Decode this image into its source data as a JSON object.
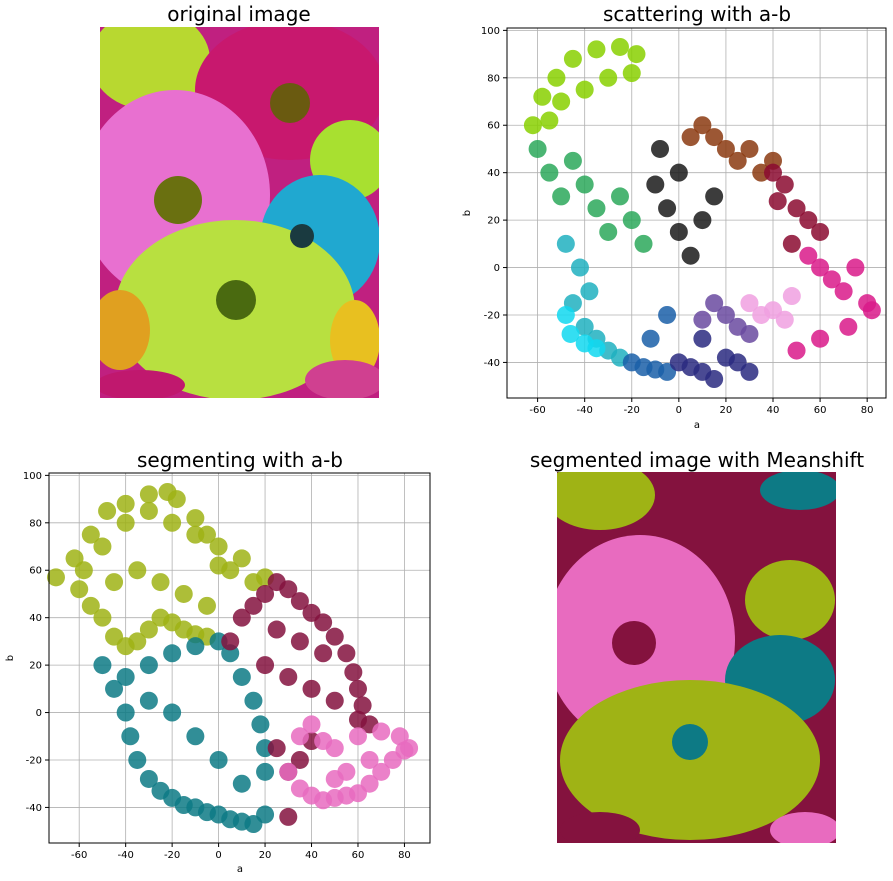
{
  "panels": {
    "original": {
      "title": "original image"
    },
    "segmented": {
      "title": "segmented image with Meanshift"
    }
  },
  "chart_data": [
    {
      "type": "scatter",
      "title": "scattering with a-b",
      "xlabel": "a",
      "ylabel": "b",
      "xlim": [
        -73,
        88
      ],
      "ylim": [
        -55,
        101
      ],
      "xticks": [
        -60,
        -40,
        -20,
        0,
        20,
        40,
        60,
        80
      ],
      "yticks": [
        -40,
        -20,
        0,
        20,
        40,
        60,
        80,
        100
      ],
      "grid": true,
      "series": [
        {
          "color": "#88d000",
          "points": [
            [
              -58,
              72
            ],
            [
              -52,
              80
            ],
            [
              -45,
              88
            ],
            [
              -35,
              92
            ],
            [
              -25,
              93
            ],
            [
              -18,
              90
            ],
            [
              -50,
              70
            ],
            [
              -40,
              75
            ],
            [
              -30,
              80
            ],
            [
              -20,
              82
            ],
            [
              -62,
              60
            ],
            [
              -55,
              62
            ]
          ]
        },
        {
          "color": "#2ca85a",
          "points": [
            [
              -60,
              50
            ],
            [
              -55,
              40
            ],
            [
              -50,
              30
            ],
            [
              -45,
              45
            ],
            [
              -40,
              35
            ],
            [
              -35,
              25
            ],
            [
              -30,
              15
            ],
            [
              -25,
              30
            ],
            [
              -20,
              20
            ],
            [
              -15,
              10
            ]
          ]
        },
        {
          "color": "#1a1a1a",
          "points": [
            [
              -10,
              35
            ],
            [
              -5,
              25
            ],
            [
              0,
              15
            ],
            [
              5,
              5
            ],
            [
              10,
              20
            ],
            [
              15,
              30
            ],
            [
              -8,
              50
            ],
            [
              0,
              40
            ]
          ]
        },
        {
          "color": "#8b3a10",
          "points": [
            [
              5,
              55
            ],
            [
              10,
              60
            ],
            [
              15,
              55
            ],
            [
              20,
              50
            ],
            [
              25,
              45
            ],
            [
              30,
              50
            ],
            [
              35,
              40
            ],
            [
              40,
              45
            ]
          ]
        },
        {
          "color": "#8b0a30",
          "points": [
            [
              40,
              40
            ],
            [
              45,
              35
            ],
            [
              50,
              25
            ],
            [
              55,
              20
            ],
            [
              48,
              10
            ],
            [
              60,
              15
            ],
            [
              42,
              28
            ]
          ]
        },
        {
          "color": "#d91a8a",
          "points": [
            [
              55,
              5
            ],
            [
              60,
              0
            ],
            [
              65,
              -5
            ],
            [
              70,
              -10
            ],
            [
              75,
              0
            ],
            [
              80,
              -15
            ],
            [
              82,
              -18
            ],
            [
              72,
              -25
            ],
            [
              60,
              -30
            ],
            [
              50,
              -35
            ]
          ]
        },
        {
          "color": "#f0a0e0",
          "points": [
            [
              30,
              -15
            ],
            [
              35,
              -20
            ],
            [
              40,
              -18
            ],
            [
              45,
              -22
            ],
            [
              48,
              -12
            ]
          ]
        },
        {
          "color": "#20b0c0",
          "points": [
            [
              -45,
              -15
            ],
            [
              -40,
              -25
            ],
            [
              -35,
              -30
            ],
            [
              -30,
              -35
            ],
            [
              -25,
              -38
            ],
            [
              -38,
              -10
            ],
            [
              -42,
              0
            ],
            [
              -48,
              10
            ]
          ]
        },
        {
          "color": "#10d8f0",
          "points": [
            [
              -48,
              -20
            ],
            [
              -46,
              -28
            ],
            [
              -40,
              -32
            ],
            [
              -35,
              -34
            ]
          ]
        },
        {
          "color": "#1a5fa8",
          "points": [
            [
              -20,
              -40
            ],
            [
              -15,
              -42
            ],
            [
              -10,
              -43
            ],
            [
              -5,
              -44
            ],
            [
              -12,
              -30
            ],
            [
              -5,
              -20
            ]
          ]
        },
        {
          "color": "#2a2a80",
          "points": [
            [
              0,
              -40
            ],
            [
              5,
              -42
            ],
            [
              10,
              -44
            ],
            [
              15,
              -47
            ],
            [
              20,
              -38
            ],
            [
              25,
              -40
            ],
            [
              30,
              -44
            ],
            [
              10,
              -30
            ]
          ]
        },
        {
          "color": "#6a4aa0",
          "points": [
            [
              20,
              -20
            ],
            [
              25,
              -25
            ],
            [
              30,
              -28
            ],
            [
              15,
              -15
            ],
            [
              10,
              -22
            ]
          ]
        }
      ]
    },
    {
      "type": "scatter",
      "title": "segmenting with a-b",
      "xlabel": "a",
      "ylabel": "b",
      "xlim": [
        -73,
        91
      ],
      "ylim": [
        -55,
        101
      ],
      "xticks": [
        -60,
        -40,
        -20,
        0,
        20,
        40,
        60,
        80
      ],
      "yticks": [
        -40,
        -20,
        0,
        20,
        40,
        60,
        80,
        100
      ],
      "grid": true,
      "series": [
        {
          "color": "#9fb315",
          "points": [
            [
              -62,
              65
            ],
            [
              -55,
              75
            ],
            [
              -48,
              85
            ],
            [
              -40,
              88
            ],
            [
              -30,
              92
            ],
            [
              -22,
              93
            ],
            [
              -18,
              90
            ],
            [
              -10,
              82
            ],
            [
              -5,
              75
            ],
            [
              0,
              70
            ],
            [
              10,
              65
            ],
            [
              20,
              57
            ],
            [
              -60,
              52
            ],
            [
              -55,
              45
            ],
            [
              -50,
              40
            ],
            [
              -45,
              32
            ],
            [
              -40,
              28
            ],
            [
              -35,
              30
            ],
            [
              -30,
              35
            ],
            [
              -25,
              40
            ],
            [
              -20,
              38
            ],
            [
              -15,
              35
            ],
            [
              -10,
              33
            ],
            [
              -5,
              32
            ],
            [
              5,
              60
            ],
            [
              15,
              55
            ],
            [
              -50,
              70
            ],
            [
              -40,
              80
            ],
            [
              -30,
              85
            ],
            [
              -20,
              80
            ],
            [
              -10,
              75
            ],
            [
              0,
              62
            ],
            [
              -35,
              60
            ],
            [
              -25,
              55
            ],
            [
              -15,
              50
            ],
            [
              -5,
              45
            ],
            [
              -58,
              60
            ],
            [
              -45,
              55
            ],
            [
              -70,
              57
            ]
          ]
        },
        {
          "color": "#0d7a85",
          "points": [
            [
              -50,
              20
            ],
            [
              -45,
              10
            ],
            [
              -40,
              0
            ],
            [
              -38,
              -10
            ],
            [
              -35,
              -20
            ],
            [
              -30,
              -28
            ],
            [
              -25,
              -33
            ],
            [
              -20,
              -36
            ],
            [
              -15,
              -39
            ],
            [
              -10,
              -40
            ],
            [
              -5,
              -42
            ],
            [
              0,
              -43
            ],
            [
              5,
              -45
            ],
            [
              10,
              -46
            ],
            [
              15,
              -47
            ],
            [
              20,
              -43
            ],
            [
              -30,
              20
            ],
            [
              -20,
              25
            ],
            [
              -10,
              28
            ],
            [
              0,
              30
            ],
            [
              5,
              25
            ],
            [
              10,
              15
            ],
            [
              15,
              5
            ],
            [
              18,
              -5
            ],
            [
              20,
              -15
            ],
            [
              20,
              -25
            ],
            [
              10,
              -30
            ],
            [
              0,
              -20
            ],
            [
              -10,
              -10
            ],
            [
              -20,
              0
            ],
            [
              -30,
              5
            ],
            [
              -40,
              15
            ]
          ]
        },
        {
          "color": "#84123e",
          "points": [
            [
              5,
              30
            ],
            [
              10,
              40
            ],
            [
              15,
              45
            ],
            [
              20,
              50
            ],
            [
              25,
              55
            ],
            [
              30,
              52
            ],
            [
              35,
              47
            ],
            [
              40,
              42
            ],
            [
              45,
              38
            ],
            [
              50,
              32
            ],
            [
              55,
              25
            ],
            [
              58,
              17
            ],
            [
              60,
              10
            ],
            [
              62,
              3
            ],
            [
              65,
              -5
            ],
            [
              25,
              -15
            ],
            [
              30,
              -25
            ],
            [
              35,
              -20
            ],
            [
              40,
              -12
            ],
            [
              20,
              20
            ],
            [
              30,
              15
            ],
            [
              40,
              10
            ],
            [
              50,
              5
            ],
            [
              25,
              35
            ],
            [
              35,
              30
            ],
            [
              45,
              25
            ],
            [
              30,
              -44
            ],
            [
              60,
              -3
            ]
          ]
        },
        {
          "color": "#e86bbf",
          "points": [
            [
              30,
              -25
            ],
            [
              35,
              -32
            ],
            [
              40,
              -35
            ],
            [
              45,
              -37
            ],
            [
              50,
              -36
            ],
            [
              55,
              -35
            ],
            [
              60,
              -34
            ],
            [
              65,
              -30
            ],
            [
              70,
              -25
            ],
            [
              75,
              -20
            ],
            [
              80,
              -16
            ],
            [
              82,
              -15
            ],
            [
              78,
              -10
            ],
            [
              70,
              -8
            ],
            [
              60,
              -10
            ],
            [
              50,
              -15
            ],
            [
              45,
              -12
            ],
            [
              40,
              -5
            ],
            [
              35,
              -10
            ],
            [
              65,
              -20
            ],
            [
              55,
              -25
            ],
            [
              50,
              -28
            ]
          ]
        }
      ]
    }
  ]
}
